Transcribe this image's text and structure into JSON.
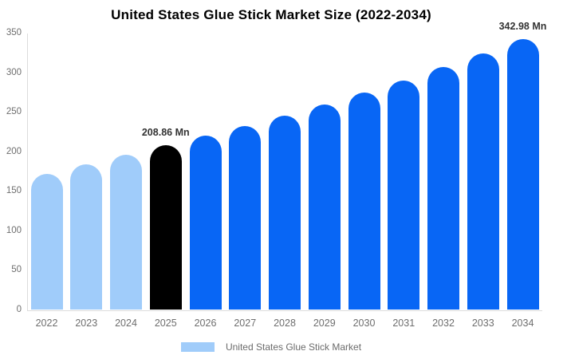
{
  "title": "United States Glue Stick Market Size (2022-2034)",
  "legend": {
    "label": "United States Glue Stick Market"
  },
  "colors": {
    "historical_bar": "#a0ccfa",
    "highlight_bar": "#000000",
    "forecast_bar": "#0866f5",
    "axis_line": "#dcdcdc",
    "tick_label": "#6e6e6e",
    "annotation_text": "#333333",
    "background": "#ffffff"
  },
  "chart_data": {
    "type": "bar",
    "title": "United States Glue Stick Market Size (2022-2034)",
    "series_name": "United States Glue Stick Market",
    "categories": [
      "2022",
      "2023",
      "2024",
      "2025",
      "2026",
      "2027",
      "2028",
      "2029",
      "2030",
      "2031",
      "2032",
      "2033",
      "2034"
    ],
    "values": [
      172.5,
      184.6,
      196.7,
      208.86,
      220.69,
      233.19,
      246.4,
      260.36,
      275.11,
      290.7,
      307.16,
      324.56,
      342.98
    ],
    "unit": "Mn",
    "xlabel": "",
    "ylabel": "",
    "ylim": [
      0,
      350
    ],
    "yticks": [
      0,
      50,
      100,
      150,
      200,
      250,
      300,
      350
    ],
    "grid": false,
    "legend_position": "bottom",
    "bar_roles": [
      "historical",
      "historical",
      "historical",
      "highlight",
      "forecast",
      "forecast",
      "forecast",
      "forecast",
      "forecast",
      "forecast",
      "forecast",
      "forecast",
      "forecast"
    ],
    "data_labels": [
      {
        "category": "2025",
        "text": "208.86 Mn"
      },
      {
        "category": "2034",
        "text": "342.98 Mn"
      }
    ]
  }
}
